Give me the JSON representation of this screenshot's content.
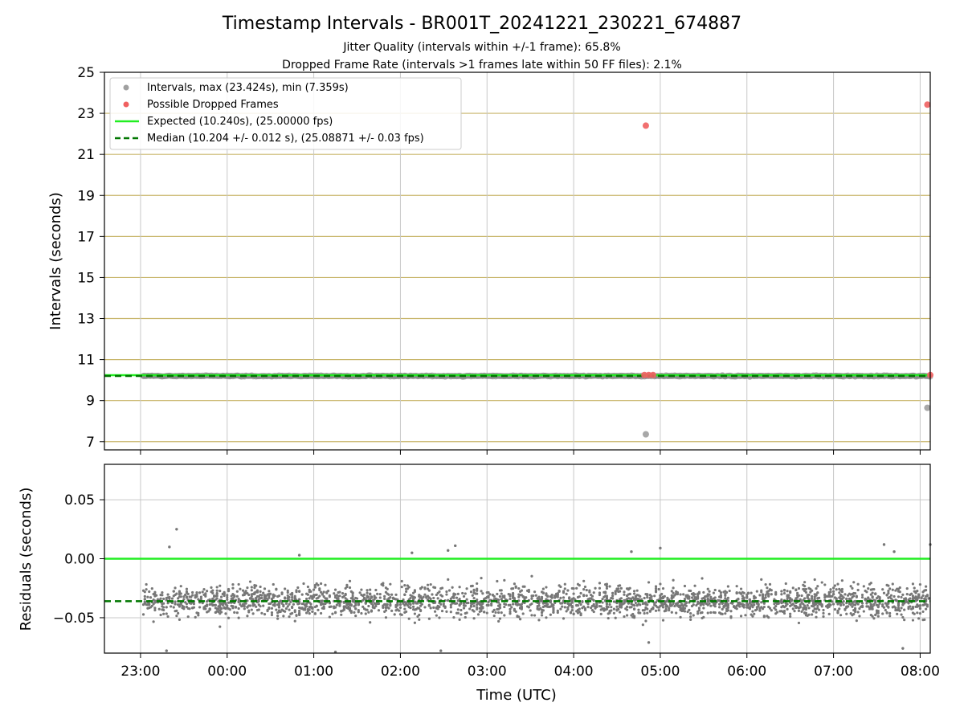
{
  "figure": {
    "title": "Timestamp Intervals - BR001T_20241221_230221_674887",
    "subtitle1": "Jitter Quality (intervals within +/-1 frame): 65.8%",
    "subtitle2": "Dropped Frame Rate (intervals >1 frames late within 50 FF files): 2.1%"
  },
  "chart_data": [
    {
      "type": "scatter",
      "name": "intervals",
      "xlabel": "",
      "ylabel": "Intervals (seconds)",
      "xlim": [
        "2024-12-21T22:35",
        "2024-12-22T08:07"
      ],
      "ylim": [
        6.6,
        25
      ],
      "yticks": [
        7,
        9,
        11,
        13,
        15,
        17,
        19,
        21,
        23,
        25
      ],
      "grid": true,
      "legend": {
        "placement": "top-left",
        "entries": [
          {
            "label": "Intervals, max (23.424s), min (7.359s)",
            "marker": "circle",
            "color": "#a0a0a0"
          },
          {
            "label": "Possible Dropped Frames",
            "marker": "circle",
            "color": "#f06060"
          },
          {
            "label": "Expected (10.240s), (25.00000 fps)",
            "marker": "line",
            "color": "#22ee22"
          },
          {
            "label": "Median (10.204 +/- 0.012 s), (25.08871 +/- 0.03 fps)",
            "marker": "dashed-line",
            "color": "#007700"
          }
        ]
      },
      "series": [
        {
          "name": "Intervals",
          "color": "#8a8a8a",
          "band": {
            "x_start": "2024-12-21T23:02",
            "x_end": "2024-12-22T08:07",
            "y": 10.2
          },
          "outliers": [
            {
              "x": "2024-12-22T04:50",
              "y": 7.359
            },
            {
              "x": "2024-12-22T08:05",
              "y": 8.65
            }
          ]
        },
        {
          "name": "Possible Dropped Frames",
          "color": "#f06060",
          "points": [
            {
              "x": "2024-12-22T04:50",
              "y": 22.4
            },
            {
              "x": "2024-12-22T08:05",
              "y": 23.424
            },
            {
              "x": "2024-12-22T04:49",
              "y": 10.25
            },
            {
              "x": "2024-12-22T04:52",
              "y": 10.25
            },
            {
              "x": "2024-12-22T04:55",
              "y": 10.25
            },
            {
              "x": "2024-12-22T08:07",
              "y": 10.25
            }
          ]
        },
        {
          "name": "Expected",
          "type": "hline",
          "y": 10.24,
          "color": "#22ee22"
        },
        {
          "name": "Median",
          "type": "hline",
          "y": 10.204,
          "color": "#007700",
          "style": "dashed"
        }
      ]
    },
    {
      "type": "scatter",
      "name": "residuals",
      "xlabel": "Time (UTC)",
      "ylabel": "Residuals (seconds)",
      "xlim": [
        "2024-12-21T22:35",
        "2024-12-22T08:07"
      ],
      "ylim": [
        -0.08,
        0.08
      ],
      "yticks": [
        0.05,
        0.0,
        -0.05
      ],
      "ytick_labels": [
        "0.05",
        "0.00",
        "−0.05"
      ],
      "xticks": [
        "23:00",
        "00:00",
        "01:00",
        "02:00",
        "03:00",
        "04:00",
        "05:00",
        "06:00",
        "07:00",
        "08:00"
      ],
      "grid": true,
      "series": [
        {
          "name": "Residuals",
          "color": "#777777",
          "center": -0.036,
          "spread": 0.012,
          "x_start": "2024-12-21T23:02",
          "x_end": "2024-12-22T08:07",
          "points": [
            {
              "x": "2024-12-21T23:25",
              "y": 0.025
            },
            {
              "x": "2024-12-21T23:20",
              "y": 0.01
            },
            {
              "x": "2024-12-22T00:50",
              "y": 0.003
            },
            {
              "x": "2024-12-22T02:08",
              "y": 0.005
            },
            {
              "x": "2024-12-22T02:33",
              "y": 0.007
            },
            {
              "x": "2024-12-22T02:38",
              "y": 0.011
            },
            {
              "x": "2024-12-22T04:40",
              "y": 0.006
            },
            {
              "x": "2024-12-22T05:00",
              "y": 0.009
            },
            {
              "x": "2024-12-22T07:35",
              "y": 0.012
            },
            {
              "x": "2024-12-22T07:42",
              "y": 0.006
            },
            {
              "x": "2024-12-22T08:07",
              "y": 0.012
            },
            {
              "x": "2024-12-21T23:18",
              "y": -0.078
            },
            {
              "x": "2024-12-22T01:15",
              "y": -0.079
            },
            {
              "x": "2024-12-22T02:28",
              "y": -0.078
            },
            {
              "x": "2024-12-22T04:52",
              "y": -0.071
            },
            {
              "x": "2024-12-22T07:48",
              "y": -0.076
            }
          ]
        },
        {
          "name": "Expected",
          "type": "hline",
          "y": 0.0,
          "color": "#22ee22"
        },
        {
          "name": "Median",
          "type": "hline",
          "y": -0.036,
          "color": "#007700",
          "style": "dashed"
        }
      ]
    }
  ]
}
